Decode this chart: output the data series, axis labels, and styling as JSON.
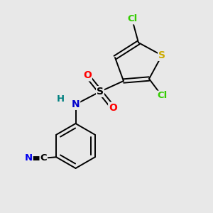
{
  "background_color": "#e8e8e8",
  "bond_color": "#000000",
  "atom_colors": {
    "Cl": "#33cc00",
    "S_thiophene": "#ccaa00",
    "S_sulfonyl": "#000000",
    "N": "#0000cc",
    "H": "#008080",
    "O": "#ff0000",
    "C": "#000000",
    "N_cyano": "#0000ee"
  },
  "figsize": [
    3.0,
    3.0
  ],
  "dpi": 100,
  "lw": 1.4
}
